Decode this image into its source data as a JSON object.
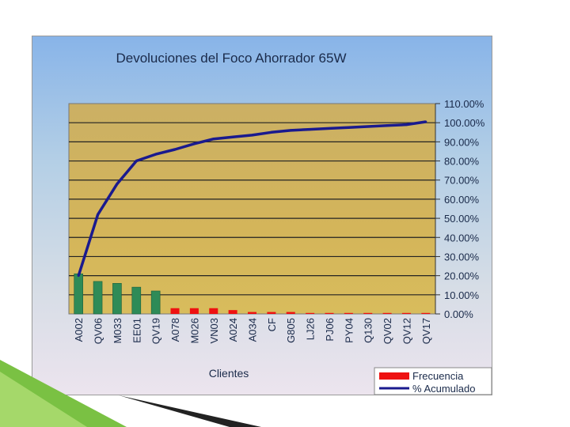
{
  "chart_data": {
    "type": "bar",
    "title": "Devoluciones del Foco Ahorrador 65W",
    "xlabel": "Clientes",
    "categories": [
      "A002",
      "QV06",
      "M033",
      "EE01",
      "QV19",
      "A078",
      "M026",
      "VN03",
      "A024",
      "A034",
      "CF",
      "G805",
      "LJ26",
      "PJ06",
      "PY04",
      "Q130",
      "QV02",
      "QV12",
      "QV17"
    ],
    "series": [
      {
        "name": "Frecuencia",
        "type": "bar",
        "values": [
          21,
          17,
          16,
          14,
          12,
          3,
          3,
          3,
          2,
          1,
          1,
          1,
          0.5,
          0.5,
          0.5,
          0.5,
          0.5,
          0.5,
          0.5
        ],
        "colors": [
          "#2e8b57",
          "#2e8b57",
          "#2e8b57",
          "#2e8b57",
          "#2e8b57",
          "#ee1111",
          "#ee1111",
          "#ee1111",
          "#ee1111",
          "#ee1111",
          "#ee1111",
          "#ee1111",
          "#ee1111",
          "#ee1111",
          "#ee1111",
          "#ee1111",
          "#ee1111",
          "#ee1111",
          "#ee1111"
        ]
      },
      {
        "name": "% Acumulado",
        "type": "line",
        "color": "#1a1a8e",
        "values": [
          20,
          52,
          68,
          80,
          83.5,
          86,
          89,
          91.5,
          92.5,
          93.5,
          95,
          96,
          96.5,
          97,
          97.5,
          98,
          98.5,
          99,
          100.5
        ]
      }
    ],
    "y_right": {
      "range": [
        0,
        110
      ],
      "ticks": [
        "0.00%",
        "10.00%",
        "20.00%",
        "30.00%",
        "40.00%",
        "50.00%",
        "60.00%",
        "70.00%",
        "80.00%",
        "90.00%",
        "100.00%",
        "110.00%"
      ]
    },
    "legend_position": "bottom-right",
    "grid": true,
    "colors": {
      "bar_top": "#2e8b57",
      "bar_rest": "#ee1111",
      "line": "#1a1a8e"
    }
  }
}
